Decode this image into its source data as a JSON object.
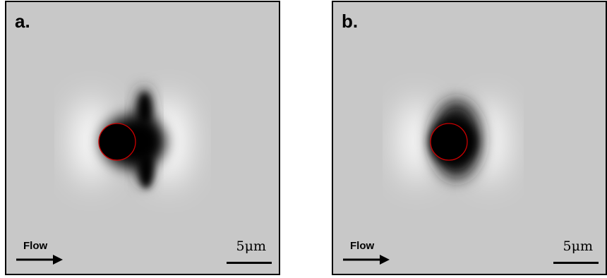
{
  "panels": [
    {
      "letter": "a.",
      "flow_label": "Flow",
      "scale_label": "5μm",
      "variant": "a"
    },
    {
      "letter": "b.",
      "flow_label": "Flow",
      "scale_label": "5μm",
      "variant": "b"
    }
  ],
  "colors": {
    "background_gray": "#c8c8c8",
    "circle_outline": "#cc0000",
    "particle_fill": "#000000"
  }
}
